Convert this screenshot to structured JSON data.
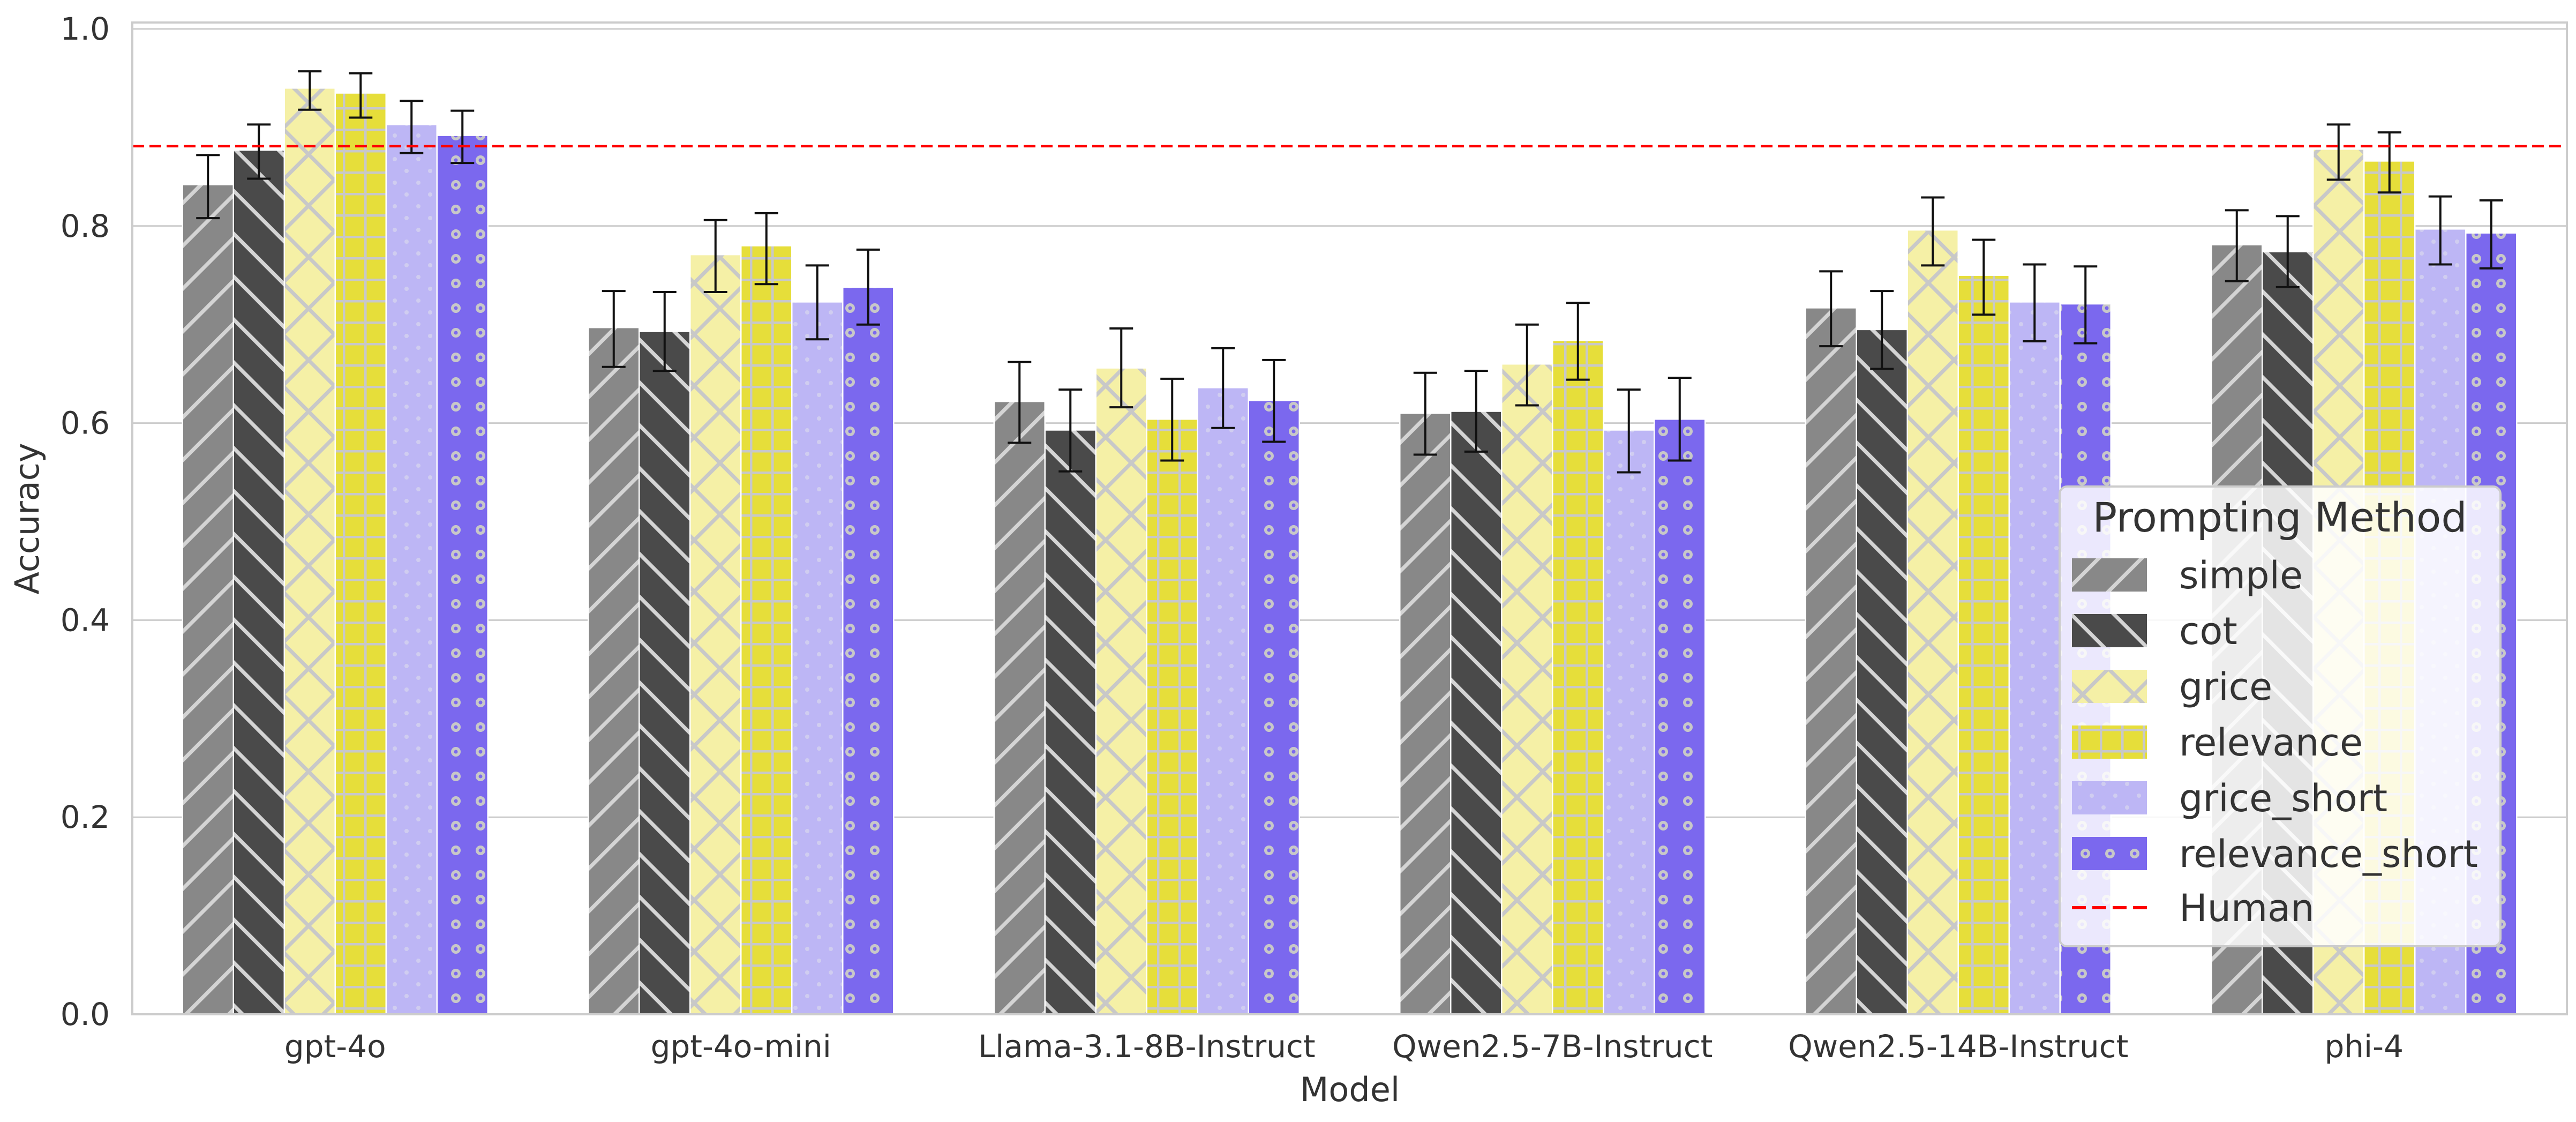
{
  "chart_data": {
    "type": "bar",
    "xlabel": "Model",
    "ylabel": "Accuracy",
    "ylim": [
      0.0,
      1.0
    ],
    "yticks": [
      0.0,
      0.2,
      0.4,
      0.6,
      0.8,
      1.0
    ],
    "ytick_labels": [
      "0.0",
      "0.2",
      "0.4",
      "0.6",
      "0.8",
      "1.0"
    ],
    "grid": true,
    "categories": [
      "gpt-4o",
      "gpt-4o-mini",
      "Llama-3.1-8B-Instruct",
      "Qwen2.5-7B-Instruct",
      "Qwen2.5-14B-Instruct",
      "phi-4"
    ],
    "legend": {
      "title": "Prompting Method",
      "position": "lower-right"
    },
    "reference_line": {
      "name": "Human",
      "value": 0.881,
      "color": "#ff0000",
      "style": "dashed"
    },
    "series": [
      {
        "name": "simple",
        "color": "#888888",
        "hatch": "diag-up",
        "values": [
          0.842,
          0.697,
          0.622,
          0.61,
          0.717,
          0.781
        ],
        "error_low": [
          0.808,
          0.657,
          0.58,
          0.568,
          0.678,
          0.744
        ],
        "error_high": [
          0.872,
          0.734,
          0.662,
          0.651,
          0.754,
          0.816
        ]
      },
      {
        "name": "cot",
        "color": "#4a4a4a",
        "hatch": "diag-down",
        "values": [
          0.877,
          0.693,
          0.593,
          0.612,
          0.695,
          0.774
        ],
        "error_low": [
          0.848,
          0.653,
          0.551,
          0.571,
          0.655,
          0.738
        ],
        "error_high": [
          0.903,
          0.733,
          0.634,
          0.653,
          0.734,
          0.81
        ]
      },
      {
        "name": "grice",
        "color": "#f5f0a6",
        "hatch": "cross",
        "values": [
          0.94,
          0.771,
          0.656,
          0.66,
          0.796,
          0.878
        ],
        "error_low": [
          0.918,
          0.733,
          0.616,
          0.618,
          0.76,
          0.847
        ],
        "error_high": [
          0.957,
          0.806,
          0.696,
          0.7,
          0.829,
          0.903
        ]
      },
      {
        "name": "relevance",
        "color": "#e6de3a",
        "hatch": "grid",
        "values": [
          0.935,
          0.78,
          0.604,
          0.684,
          0.75,
          0.866
        ],
        "error_low": [
          0.91,
          0.741,
          0.562,
          0.644,
          0.71,
          0.834
        ],
        "error_high": [
          0.955,
          0.813,
          0.645,
          0.722,
          0.786,
          0.895
        ]
      },
      {
        "name": "grice_short",
        "color": "#bdb6f5",
        "hatch": "dots",
        "values": [
          0.903,
          0.723,
          0.636,
          0.593,
          0.723,
          0.797
        ],
        "error_low": [
          0.874,
          0.685,
          0.595,
          0.55,
          0.683,
          0.761
        ],
        "error_high": [
          0.927,
          0.76,
          0.676,
          0.634,
          0.761,
          0.83
        ]
      },
      {
        "name": "relevance_short",
        "color": "#7b68ee",
        "hatch": "rings",
        "values": [
          0.892,
          0.738,
          0.623,
          0.604,
          0.721,
          0.793
        ],
        "error_low": [
          0.864,
          0.7,
          0.581,
          0.562,
          0.681,
          0.757
        ],
        "error_high": [
          0.917,
          0.776,
          0.664,
          0.646,
          0.759,
          0.826
        ]
      }
    ]
  }
}
